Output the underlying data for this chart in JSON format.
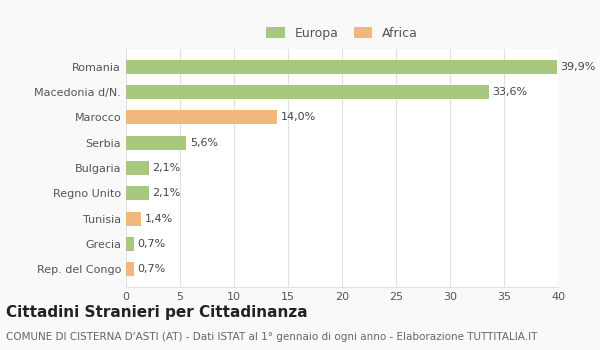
{
  "categories": [
    "Romania",
    "Macedonia d/N.",
    "Marocco",
    "Serbia",
    "Bulgaria",
    "Regno Unito",
    "Tunisia",
    "Grecia",
    "Rep. del Congo"
  ],
  "values": [
    39.9,
    33.6,
    14.0,
    5.6,
    2.1,
    2.1,
    1.4,
    0.7,
    0.7
  ],
  "labels": [
    "39,9%",
    "33,6%",
    "14,0%",
    "5,6%",
    "2,1%",
    "2,1%",
    "1,4%",
    "0,7%",
    "0,7%"
  ],
  "colors": [
    "#a8c880",
    "#a8c880",
    "#f0b87a",
    "#a8c880",
    "#a8c880",
    "#a8c880",
    "#f0b87a",
    "#a8c880",
    "#f0b87a"
  ],
  "legend_labels": [
    "Europa",
    "Africa"
  ],
  "legend_colors": [
    "#a8c880",
    "#f0b87a"
  ],
  "title": "Cittadini Stranieri per Cittadinanza",
  "subtitle": "COMUNE DI CISTERNA D'ASTI (AT) - Dati ISTAT al 1° gennaio di ogni anno - Elaborazione TUTTITALIA.IT",
  "xlim": [
    0,
    40
  ],
  "xticks": [
    0,
    5,
    10,
    15,
    20,
    25,
    30,
    35,
    40
  ],
  "background_color": "#f9f9f9",
  "bar_background": "#ffffff",
  "grid_color": "#e0e0e0",
  "title_fontsize": 11,
  "subtitle_fontsize": 7.5,
  "label_fontsize": 8,
  "tick_fontsize": 8,
  "bar_height": 0.55
}
